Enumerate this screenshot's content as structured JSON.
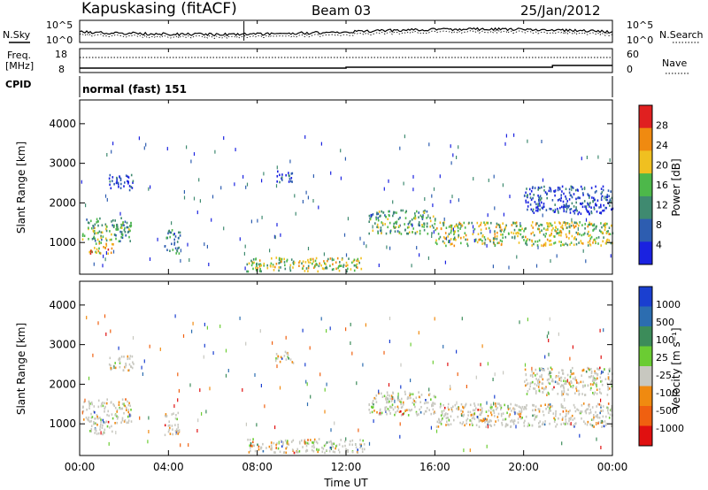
{
  "header": {
    "station": "Kapuskasing (fitACF)",
    "beam": "Beam 03",
    "date": "25/Jan/2012"
  },
  "top_panel": {
    "left_label": "N.Sky",
    "right_label": "N.Search",
    "left_ticks": [
      "10^5",
      "10^0"
    ],
    "right_ticks": [
      "10^5",
      "10^0"
    ]
  },
  "freq_panel": {
    "left_label_1": "Freq.",
    "left_label_2": "[MHz]",
    "left_ticks": [
      "18",
      "8"
    ],
    "right_ticks": [
      "60",
      "0"
    ],
    "right_label": "Nave",
    "cpid_label": "CPID",
    "cpid_text": "normal (fast) 151"
  },
  "chart_data": [
    {
      "type": "heatmap",
      "name": "power",
      "ylabel": "Slant Range [km]",
      "xlabel": "",
      "ylim": [
        200,
        4600
      ],
      "yticks": [
        "1000",
        "2000",
        "3000",
        "4000"
      ],
      "colorbar": {
        "label": "Power [dB]",
        "ticks": [
          "4",
          "8",
          "12",
          "16",
          "20",
          "24",
          "28"
        ],
        "colors": [
          "#1a22e0",
          "#2d5db0",
          "#3f8a70",
          "#4db84a",
          "#f0c020",
          "#f08a10",
          "#e02020"
        ]
      },
      "regions": [
        {
          "t": [
            0.1,
            2.3
          ],
          "r": [
            1000,
            1600
          ],
          "level": 3
        },
        {
          "t": [
            0.4,
            1.5
          ],
          "r": [
            700,
            1000
          ],
          "level": 5
        },
        {
          "t": [
            1.3,
            2.4
          ],
          "r": [
            2300,
            2700
          ],
          "level": 1
        },
        {
          "t": [
            3.8,
            4.5
          ],
          "r": [
            700,
            1300
          ],
          "level": 2
        },
        {
          "t": [
            8.8,
            9.6
          ],
          "r": [
            2500,
            2800
          ],
          "level": 1
        },
        {
          "t": [
            7.5,
            12.8
          ],
          "r": [
            250,
            600
          ],
          "level": 4
        },
        {
          "t": [
            13.0,
            16.0
          ],
          "r": [
            1200,
            1800
          ],
          "level": 3
        },
        {
          "t": [
            16.0,
            24.0
          ],
          "r": [
            900,
            1500
          ],
          "level": 4
        },
        {
          "t": [
            20.0,
            24.0
          ],
          "r": [
            1700,
            2400
          ],
          "level": 1
        }
      ]
    },
    {
      "type": "heatmap",
      "name": "velocity",
      "ylabel": "Slant Range [km]",
      "xlabel": "Time UT",
      "ylim": [
        200,
        4600
      ],
      "yticks": [
        "1000",
        "2000",
        "3000",
        "4000"
      ],
      "colorbar": {
        "label": "Velocity [m s⁻¹]",
        "ticks": [
          "1000",
          "500",
          "100",
          "25",
          "-25",
          "-100",
          "-500",
          "-1000"
        ],
        "colors": [
          "#1a3fd0",
          "#2c6db0",
          "#3c8c5a",
          "#6bcc33",
          "#c8c8c0",
          "#f08a10",
          "#f06010",
          "#e01010"
        ]
      },
      "xticks": [
        "00:00",
        "04:00",
        "08:00",
        "12:00",
        "16:00",
        "20:00",
        "00:00"
      ]
    }
  ]
}
